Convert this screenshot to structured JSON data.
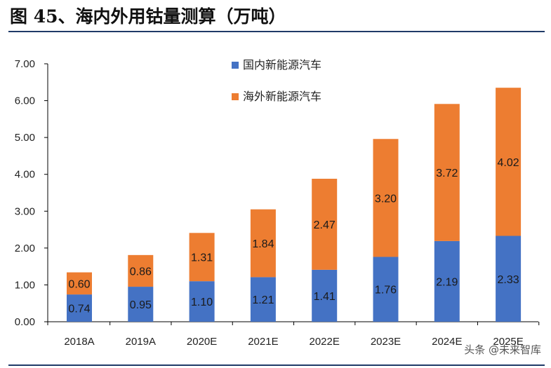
{
  "figure_title": "图 45、海内外用钴量测算（万吨）",
  "watermark": "头条 @未来智库",
  "chart_data": {
    "type": "bar",
    "stacked": true,
    "categories": [
      "2018A",
      "2019A",
      "2020E",
      "2021E",
      "2022E",
      "2023E",
      "2024E",
      "2025E"
    ],
    "series": [
      {
        "name": "国内新能源汽车",
        "color": "#4472c4",
        "values": [
          0.74,
          0.95,
          1.1,
          1.21,
          1.41,
          1.76,
          2.19,
          2.33
        ]
      },
      {
        "name": "海外新能源汽车",
        "color": "#ed7d31",
        "values": [
          0.6,
          0.86,
          1.31,
          1.84,
          2.47,
          3.2,
          3.72,
          4.02
        ]
      }
    ],
    "data_labels": {
      "domestic": [
        "0.74",
        "0.95",
        "1.10",
        "1.21",
        "1.41",
        "1.76",
        "2.19",
        "2.33"
      ],
      "overseas": [
        "0.60",
        "0.86",
        "1.31",
        "1.84",
        "2.47",
        "3.20",
        "3.72",
        "4.02"
      ]
    },
    "y_ticks": [
      "0.00",
      "1.00",
      "2.00",
      "3.00",
      "4.00",
      "5.00",
      "6.00",
      "7.00"
    ],
    "ylim": [
      0,
      7
    ],
    "legend_position": "top-center",
    "grid": false
  }
}
